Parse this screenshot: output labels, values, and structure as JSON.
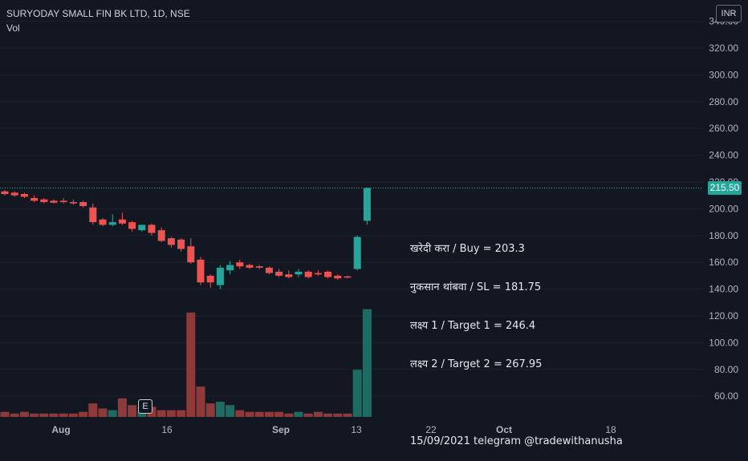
{
  "header": {
    "symbol_line": "SURYODAY SMALL FIN BK LTD, 1D, NSE",
    "vol_label": "Vol"
  },
  "currency_button": "INR",
  "last_price_tag": "215.50",
  "earnings_badge": "E",
  "annotation": {
    "lines": [
      "खरेदी करा / Buy = 203.3",
      "नुकसान थांबवा / SL = 181.75",
      "लक्ष्य 1 / Target 1 = 246.4",
      "लक्ष्य 2 / Target 2 = 267.95",
      "",
      "15/09/2021 telegram @tradewithanusha"
    ]
  },
  "colors": {
    "background": "#131722",
    "up": "#26a69a",
    "down": "#ef5350",
    "volume_up": "#1e6b64",
    "volume_down": "#8e3a3a",
    "grid": "#1e222d"
  },
  "chart_data": {
    "type": "candlestick",
    "y_axis_ticks": [
      60,
      80,
      100,
      120,
      140,
      160,
      180,
      200,
      220,
      240,
      260,
      280,
      300,
      320,
      340
    ],
    "y_axis_tick_labels": [
      "60.00",
      "80.00",
      "100.00",
      "120.00",
      "140.00",
      "160.00",
      "180.00",
      "200.00",
      "220.00",
      "240.00",
      "260.00",
      "280.00",
      "300.00",
      "320.00",
      "340.00"
    ],
    "x_axis_labels": [
      "Aug",
      "16",
      "Sep",
      "13",
      "22",
      "Oct",
      "18"
    ],
    "last_price": 215.5,
    "candles": [
      {
        "o": 213,
        "h": 214,
        "c": 211,
        "l": 210,
        "v": 3,
        "d": "down"
      },
      {
        "o": 212,
        "h": 213,
        "c": 210,
        "l": 209,
        "v": 2,
        "d": "down"
      },
      {
        "o": 211,
        "h": 212,
        "c": 209,
        "l": 208,
        "v": 3,
        "d": "down"
      },
      {
        "o": 208,
        "h": 210,
        "c": 206,
        "l": 205,
        "v": 2,
        "d": "down"
      },
      {
        "o": 207,
        "h": 208,
        "c": 205,
        "l": 204,
        "v": 2,
        "d": "down"
      },
      {
        "o": 206,
        "h": 207,
        "c": 204.5,
        "l": 204,
        "v": 2,
        "d": "down"
      },
      {
        "o": 206,
        "h": 208,
        "c": 205,
        "l": 204,
        "v": 2,
        "d": "down"
      },
      {
        "o": 205,
        "h": 207,
        "c": 204,
        "l": 203,
        "v": 2,
        "d": "down"
      },
      {
        "o": 205,
        "h": 206,
        "c": 202,
        "l": 201,
        "v": 3,
        "d": "down"
      },
      {
        "o": 201,
        "h": 204,
        "c": 190,
        "l": 188,
        "v": 8,
        "d": "down"
      },
      {
        "o": 192,
        "h": 193,
        "c": 188,
        "l": 187,
        "v": 5,
        "d": "down"
      },
      {
        "o": 188,
        "h": 196,
        "c": 190,
        "l": 187,
        "v": 4,
        "d": "up"
      },
      {
        "o": 192,
        "h": 197,
        "c": 189,
        "l": 188,
        "v": 11,
        "d": "down"
      },
      {
        "o": 190,
        "h": 191,
        "c": 185,
        "l": 183,
        "v": 7,
        "d": "down"
      },
      {
        "o": 184,
        "h": 188,
        "c": 188,
        "l": 183,
        "v": 3,
        "d": "up"
      },
      {
        "o": 188,
        "h": 189,
        "c": 182,
        "l": 180,
        "v": 6,
        "d": "down"
      },
      {
        "o": 184,
        "h": 186,
        "c": 176,
        "l": 175,
        "v": 4,
        "d": "down"
      },
      {
        "o": 178,
        "h": 179,
        "c": 173,
        "l": 171,
        "v": 4,
        "d": "down"
      },
      {
        "o": 177,
        "h": 178,
        "c": 170,
        "l": 168,
        "v": 4,
        "d": "down"
      },
      {
        "o": 172,
        "h": 178,
        "c": 160,
        "l": 159,
        "v": 62,
        "d": "down"
      },
      {
        "o": 162,
        "h": 164,
        "c": 145,
        "l": 143,
        "v": 18,
        "d": "down"
      },
      {
        "o": 150,
        "h": 151,
        "c": 145,
        "l": 141,
        "v": 8,
        "d": "down"
      },
      {
        "o": 143,
        "h": 158,
        "c": 156,
        "l": 140,
        "v": 9,
        "d": "up"
      },
      {
        "o": 154,
        "h": 161,
        "c": 158,
        "l": 151,
        "v": 7,
        "d": "up"
      },
      {
        "o": 160,
        "h": 162,
        "c": 157,
        "l": 155,
        "v": 4,
        "d": "down"
      },
      {
        "o": 158,
        "h": 159,
        "c": 156,
        "l": 155,
        "v": 3,
        "d": "down"
      },
      {
        "o": 157,
        "h": 158,
        "c": 156,
        "l": 155,
        "v": 3,
        "d": "down"
      },
      {
        "o": 156,
        "h": 157,
        "c": 152,
        "l": 151,
        "v": 3,
        "d": "down"
      },
      {
        "o": 153,
        "h": 155,
        "c": 150,
        "l": 149,
        "v": 3,
        "d": "down"
      },
      {
        "o": 151,
        "h": 154,
        "c": 149,
        "l": 148,
        "v": 2,
        "d": "down"
      },
      {
        "o": 151,
        "h": 155,
        "c": 153,
        "l": 149,
        "v": 3,
        "d": "up"
      },
      {
        "o": 153,
        "h": 154,
        "c": 149,
        "l": 148,
        "v": 2,
        "d": "down"
      },
      {
        "o": 152,
        "h": 154,
        "c": 151,
        "l": 150,
        "v": 3,
        "d": "down"
      },
      {
        "o": 153,
        "h": 154,
        "c": 149,
        "l": 148,
        "v": 2,
        "d": "down"
      },
      {
        "o": 150,
        "h": 151,
        "c": 148,
        "l": 147,
        "v": 2,
        "d": "down"
      },
      {
        "o": 149,
        "h": 150,
        "c": 149.5,
        "l": 148,
        "v": 2,
        "d": "down"
      },
      {
        "o": 155,
        "h": 180,
        "c": 179,
        "l": 154,
        "v": 28,
        "d": "up"
      },
      {
        "o": 191,
        "h": 216,
        "c": 215.5,
        "l": 188,
        "v": 64,
        "d": "up"
      }
    ],
    "volume_scale": "relative"
  }
}
